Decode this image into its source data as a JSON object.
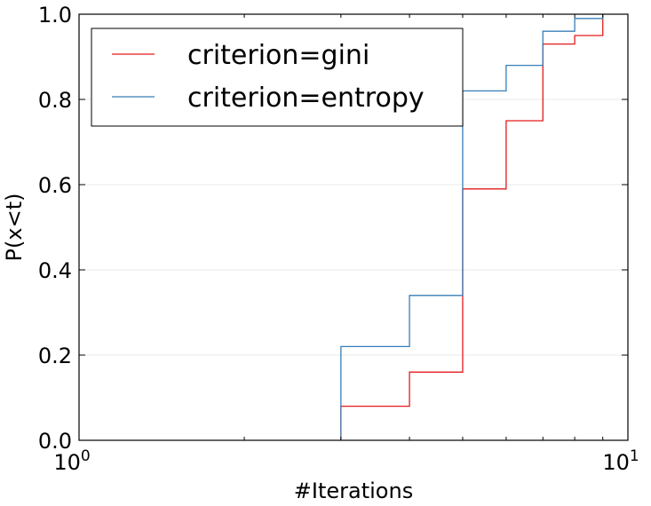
{
  "chart_data": {
    "type": "line",
    "step": true,
    "xlabel": "#Iterations",
    "ylabel": "P(x<t)",
    "xscale": "log",
    "xlim": [
      1,
      10
    ],
    "ylim": [
      0,
      1
    ],
    "x_ticks": [
      {
        "value": 1,
        "base": "10",
        "exp": "0"
      },
      {
        "value": 10,
        "base": "10",
        "exp": "1"
      }
    ],
    "y_ticks": [
      {
        "value": 0.0,
        "label": "0.0"
      },
      {
        "value": 0.2,
        "label": "0.2"
      },
      {
        "value": 0.4,
        "label": "0.4"
      },
      {
        "value": 0.6,
        "label": "0.6"
      },
      {
        "value": 0.8,
        "label": "0.8"
      },
      {
        "value": 1.0,
        "label": "1.0"
      }
    ],
    "grid": {
      "y": true,
      "x": false
    },
    "legend": {
      "placement": "top-left"
    },
    "series": [
      {
        "name": "criterion=gini",
        "color": "#e41a1c",
        "x": [
          3,
          3,
          4,
          5,
          6,
          7,
          8,
          9
        ],
        "y": [
          0,
          0.08,
          0.16,
          0.59,
          0.75,
          0.93,
          0.95,
          1.0
        ]
      },
      {
        "name": "criterion=entropy",
        "color": "#377eb8",
        "x": [
          3,
          3,
          4,
          5,
          6,
          7,
          8,
          9
        ],
        "y": [
          0,
          0.22,
          0.34,
          0.82,
          0.88,
          0.96,
          0.99,
          1.0
        ]
      }
    ]
  }
}
